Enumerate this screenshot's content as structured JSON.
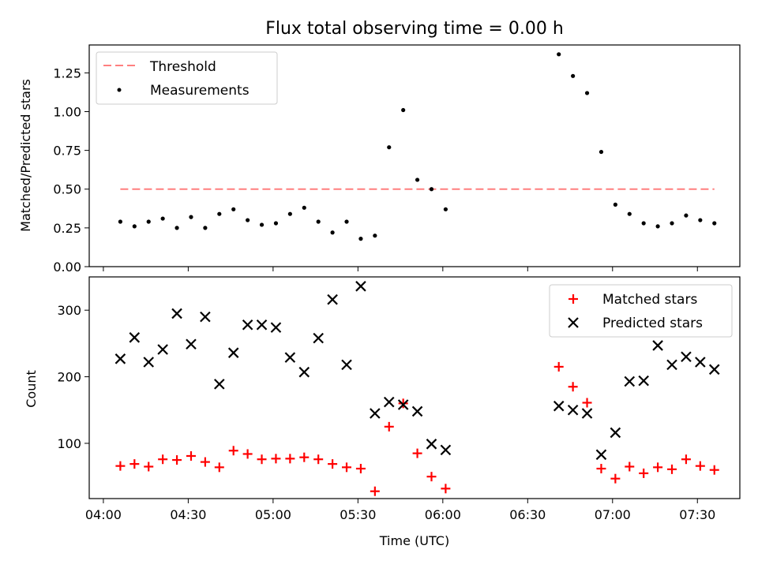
{
  "chart_data": [
    {
      "type": "scatter",
      "title": "Flux total observing time = 0.00 h",
      "ylabel": "Matched/Predicted stars",
      "xlabel": "",
      "ylim": [
        0,
        1.43
      ],
      "yticks": [
        "0.00",
        "0.25",
        "0.50",
        "0.75",
        "1.00",
        "1.25"
      ],
      "threshold": {
        "name": "Threshold",
        "value": 0.5,
        "x": [
          "04:06",
          "07:36"
        ],
        "color": "#ff7f7f"
      },
      "series": [
        {
          "name": "Measurements",
          "color": "#000000",
          "x": [
            "04:06",
            "04:11",
            "04:16",
            "04:21",
            "04:26",
            "04:31",
            "04:36",
            "04:41",
            "04:46",
            "04:51",
            "04:56",
            "05:01",
            "05:06",
            "05:11",
            "05:16",
            "05:21",
            "05:26",
            "05:31",
            "05:36",
            "05:41",
            "05:46",
            "05:51",
            "05:56",
            "06:01",
            "06:41",
            "06:46",
            "06:51",
            "06:56",
            "07:01",
            "07:06",
            "07:11",
            "07:16",
            "07:21",
            "07:26",
            "07:31",
            "07:36"
          ],
          "y": [
            0.29,
            0.26,
            0.29,
            0.31,
            0.25,
            0.32,
            0.25,
            0.34,
            0.37,
            0.3,
            0.27,
            0.28,
            0.34,
            0.38,
            0.29,
            0.22,
            0.29,
            0.18,
            0.2,
            0.77,
            1.01,
            0.56,
            0.5,
            0.37,
            1.37,
            1.23,
            1.12,
            0.74,
            0.4,
            0.34,
            0.28,
            0.26,
            0.28,
            0.33,
            0.3,
            0.28
          ]
        }
      ],
      "legend": "top-left"
    },
    {
      "type": "scatter",
      "title": "",
      "ylabel": "Count",
      "xlabel": "Time (UTC)",
      "ylim": [
        17,
        350
      ],
      "yticks": [
        "100",
        "200",
        "300"
      ],
      "xticks": [
        "04:00",
        "04:30",
        "05:00",
        "05:30",
        "06:00",
        "06:30",
        "07:00",
        "07:30"
      ],
      "series": [
        {
          "name": "Matched stars",
          "marker": "+",
          "color": "#ff0000",
          "x": [
            "04:06",
            "04:11",
            "04:16",
            "04:21",
            "04:26",
            "04:31",
            "04:36",
            "04:41",
            "04:46",
            "04:51",
            "04:56",
            "05:01",
            "05:06",
            "05:11",
            "05:16",
            "05:21",
            "05:26",
            "05:31",
            "05:36",
            "05:41",
            "05:46",
            "05:51",
            "05:56",
            "06:01",
            "06:41",
            "06:46",
            "06:51",
            "06:56",
            "07:01",
            "07:06",
            "07:11",
            "07:16",
            "07:21",
            "07:26",
            "07:31",
            "07:36"
          ],
          "y": [
            66,
            69,
            65,
            76,
            75,
            81,
            72,
            64,
            89,
            84,
            76,
            77,
            77,
            79,
            76,
            69,
            64,
            62,
            28,
            125,
            160,
            85,
            50,
            32,
            215,
            185,
            161,
            62,
            47,
            65,
            55,
            64,
            61,
            76,
            66,
            60
          ]
        },
        {
          "name": "Predicted stars",
          "marker": "x",
          "color": "#000000",
          "x": [
            "04:06",
            "04:11",
            "04:16",
            "04:21",
            "04:26",
            "04:31",
            "04:36",
            "04:41",
            "04:46",
            "04:51",
            "04:56",
            "05:01",
            "05:06",
            "05:11",
            "05:16",
            "05:21",
            "05:26",
            "05:31",
            "05:36",
            "05:41",
            "05:46",
            "05:51",
            "05:56",
            "06:01",
            "06:41",
            "06:46",
            "06:51",
            "06:56",
            "07:01",
            "07:06",
            "07:11",
            "07:16",
            "07:21",
            "07:26",
            "07:31",
            "07:36"
          ],
          "y": [
            227,
            259,
            222,
            241,
            295,
            249,
            290,
            189,
            236,
            278,
            278,
            274,
            229,
            207,
            258,
            316,
            218,
            336,
            145,
            162,
            158,
            148,
            99,
            90,
            156,
            150,
            145,
            83,
            116,
            193,
            194,
            247,
            218,
            230,
            222,
            211
          ]
        }
      ],
      "legend": "top-right"
    }
  ]
}
